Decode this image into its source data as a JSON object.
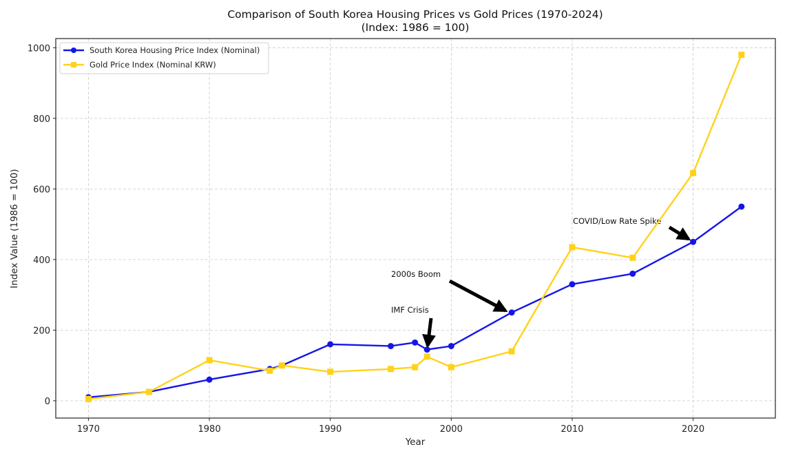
{
  "chart_data": {
    "type": "line",
    "title": "Comparison of South Korea Housing Prices vs Gold Prices (1970-2024)",
    "subtitle": "(Index: 1986 = 100)",
    "xlabel": "Year",
    "ylabel": "Index Value (1986 = 100)",
    "xlim": [
      1967.3,
      2026.8
    ],
    "ylim": [
      -49,
      1026
    ],
    "xticks": [
      1970,
      1980,
      1990,
      2000,
      2010,
      2020
    ],
    "yticks": [
      0,
      200,
      400,
      600,
      800,
      1000
    ],
    "grid": true,
    "legend_position": "top-left",
    "series": [
      {
        "name": "South Korea Housing Price Index (Nominal)",
        "color": "#1515e8",
        "marker": "circle",
        "x": [
          1970,
          1975,
          1980,
          1985,
          1986,
          1990,
          1995,
          1997,
          1998,
          2000,
          2005,
          2010,
          2015,
          2020,
          2024
        ],
        "values": [
          10,
          25,
          60,
          90,
          100,
          160,
          155,
          165,
          145,
          155,
          250,
          330,
          360,
          450,
          550
        ]
      },
      {
        "name": "Gold Price Index (Nominal KRW)",
        "color": "#ffd21a",
        "marker": "square",
        "x": [
          1970,
          1975,
          1980,
          1985,
          1986,
          1990,
          1995,
          1997,
          1998,
          2000,
          2005,
          2010,
          2015,
          2020,
          2024
        ],
        "values": [
          5,
          25,
          115,
          85,
          100,
          82,
          90,
          95,
          125,
          95,
          140,
          435,
          405,
          645,
          980
        ]
      }
    ],
    "annotations": [
      {
        "text": "IMF Crisis",
        "target_x": 1998,
        "target_y": 145,
        "text_x": 1995.5,
        "text_y": 255
      },
      {
        "text": "2000s Boom",
        "target_x": 2005,
        "target_y": 250,
        "text_x": 1995.5,
        "text_y": 355
      },
      {
        "text": "COVID/Low Rate Spike",
        "target_x": 2020,
        "target_y": 450,
        "text_x": 2010,
        "text_y": 505
      }
    ]
  }
}
